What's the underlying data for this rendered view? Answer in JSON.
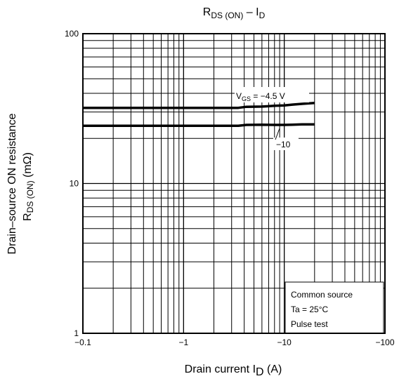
{
  "chart_data": {
    "type": "line",
    "title": {
      "main": "R",
      "main_sub": "DS (ON)",
      "sep": " – I",
      "sep_sub": "D"
    },
    "xlabel": {
      "main": "Drain current   I",
      "main_sub": "D",
      "unit": "   (A)"
    },
    "ylabel": {
      "line1": "Drain–source ON resistance",
      "line2_main": "R",
      "line2_sub": "DS (ON)",
      "unit": "(mΩ)"
    },
    "x_scale": "log",
    "y_scale": "log",
    "xlim": [
      -0.1,
      -100
    ],
    "ylim": [
      1,
      100
    ],
    "x_ticks": [
      {
        "value": -0.1,
        "label": "−0.1"
      },
      {
        "value": -1,
        "label": "−1"
      },
      {
        "value": -10,
        "label": "−10"
      },
      {
        "value": -100,
        "label": "−100"
      }
    ],
    "y_ticks": [
      {
        "value": 1,
        "label": "1"
      },
      {
        "value": 10,
        "label": "10"
      },
      {
        "value": 100,
        "label": "100"
      }
    ],
    "grid": true,
    "series": [
      {
        "name": {
          "main": "V",
          "sub": "GS",
          "rest": " = −4.5 V"
        },
        "x": [
          -0.1,
          -3.5,
          -4.2,
          -6,
          -8,
          -10,
          -12,
          -15,
          -20
        ],
        "y": [
          32,
          32,
          32.5,
          32.6,
          33,
          33.2,
          33.6,
          34,
          34.5
        ]
      },
      {
        "name": {
          "main": "",
          "sub": "",
          "rest": "−10"
        },
        "x": [
          -0.1,
          -3.5,
          -4.2,
          -6,
          -8,
          -10,
          -12,
          -15,
          -20
        ],
        "y": [
          24.3,
          24.3,
          24.6,
          24.7,
          24.6,
          24.6,
          24.7,
          24.8,
          24.8
        ]
      }
    ],
    "annotations": [
      "Common source",
      "Ta = 25°C",
      "Pulse test"
    ]
  }
}
